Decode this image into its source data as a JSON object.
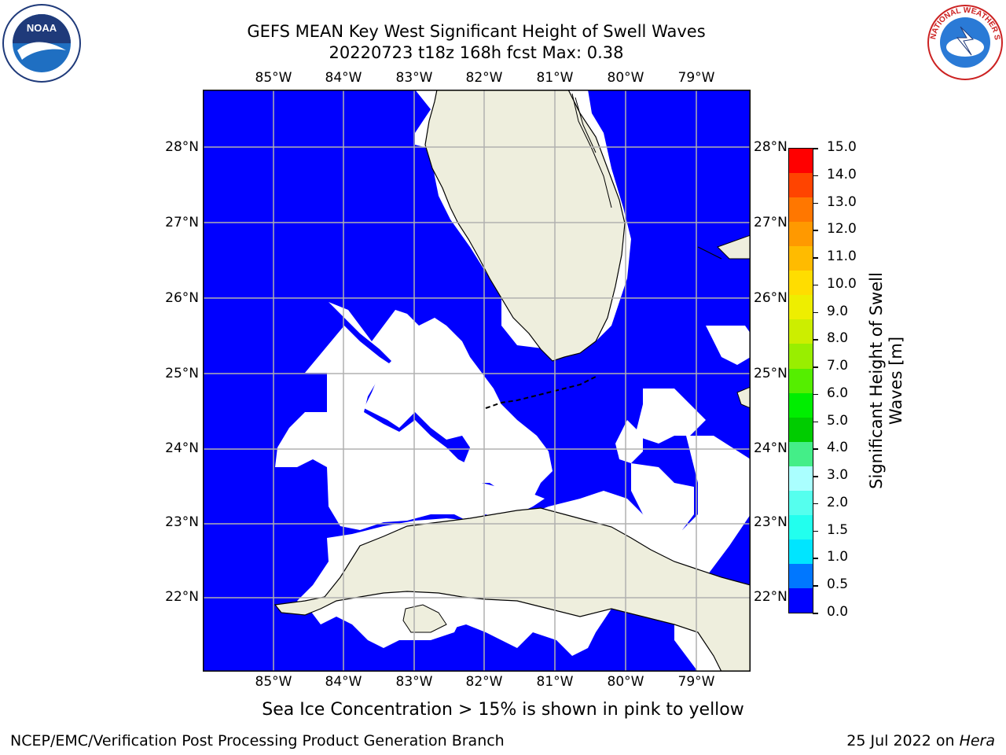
{
  "title": {
    "line1": "GEFS MEAN Key West Significant Height of Swell Waves",
    "line2": "20220723 t18z 168h fcst   Max: 0.38"
  },
  "map": {
    "ocean_color": "#0000ff",
    "land_color": "#eeeedd",
    "grid_color": "#b0b0b0",
    "lon_labels": [
      "85°W",
      "84°W",
      "83°W",
      "82°W",
      "81°W",
      "80°W",
      "79°W"
    ],
    "lat_labels": [
      "28°N",
      "27°N",
      "26°N",
      "25°N",
      "24°N",
      "23°N",
      "22°N"
    ]
  },
  "colorbar": {
    "label_line1": "Significant Height of Swell",
    "label_line2": "Waves [m]",
    "ticks": [
      "15.0",
      "14.0",
      "13.0",
      "12.0",
      "11.0",
      "10.0",
      "9.0",
      "8.0",
      "7.0",
      "6.0",
      "5.0",
      "4.0",
      "3.0",
      "2.0",
      "1.5",
      "1.0",
      "0.5",
      "0.0"
    ],
    "colors": [
      "#0000ff",
      "#0077ff",
      "#00e5ff",
      "#22ffee",
      "#55ffee",
      "#aaffff",
      "#44ee88",
      "#00cc00",
      "#00ee00",
      "#55ee00",
      "#99ee00",
      "#ccee00",
      "#eeee00",
      "#ffdd00",
      "#ffbb00",
      "#ff9900",
      "#ff7700",
      "#ff4400",
      "#ff0000"
    ]
  },
  "note": "Sea Ice Concentration > 15% is shown in pink to yellow",
  "footer": {
    "left": "NCEP/EMC/Verification Post Processing Product Generation Branch",
    "right_prefix": "25 Jul 2022 on ",
    "right_host": "Hera"
  },
  "logos": {
    "noaa_text": "NOAA",
    "nws_text": "NATIONAL WEATHER SERVICE"
  }
}
